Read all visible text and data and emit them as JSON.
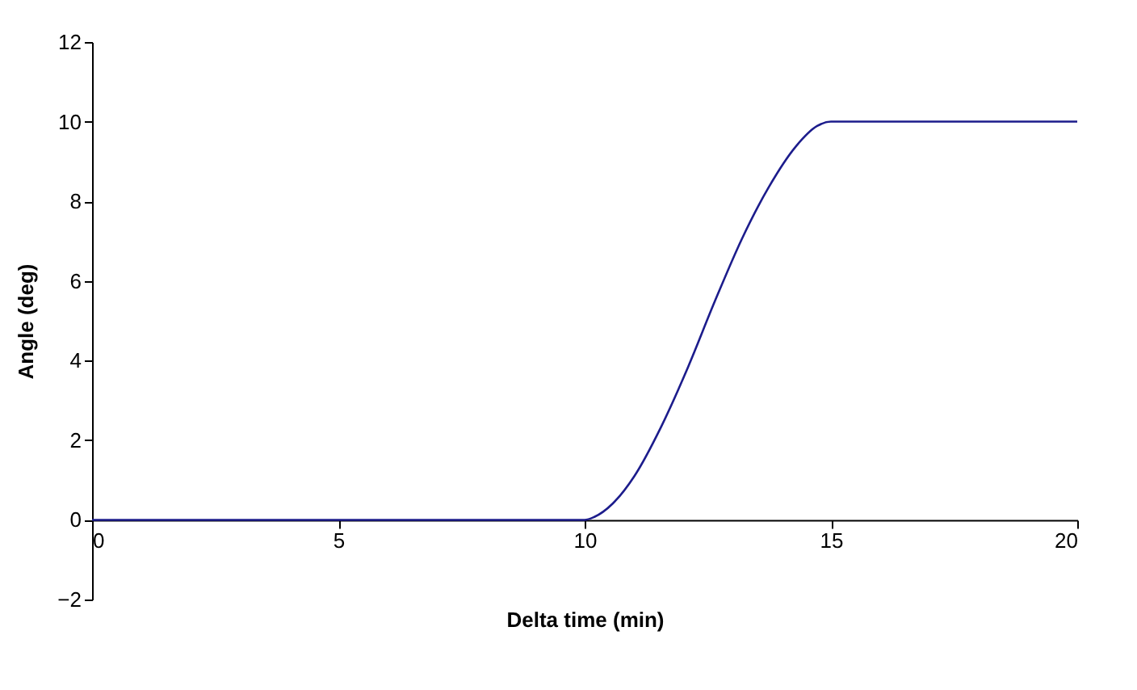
{
  "chart_data": {
    "type": "line",
    "xlabel": "Delta time (min)",
    "ylabel": "Angle (deg)",
    "x": [
      0,
      10,
      10.19,
      10.57,
      11.01,
      11.55,
      12.1,
      12.64,
      13.19,
      13.74,
      14.29,
      14.72,
      15,
      20
    ],
    "series": [
      {
        "color": "#1c1c8c",
        "values": [
          0,
          0,
          0.07,
          0.41,
          1.1,
          2.33,
          3.84,
          5.48,
          7.05,
          8.36,
          9.38,
          9.89,
          10,
          10
        ]
      }
    ],
    "xlim": [
      0,
      20
    ],
    "xticks": [
      0,
      5,
      10,
      15,
      20
    ],
    "ylim": [
      -2,
      12
    ],
    "yticks": [
      -2,
      0,
      2,
      4,
      6,
      8,
      10,
      12
    ],
    "grid": false,
    "legend": false,
    "marker": "none",
    "line_style": "solid"
  }
}
